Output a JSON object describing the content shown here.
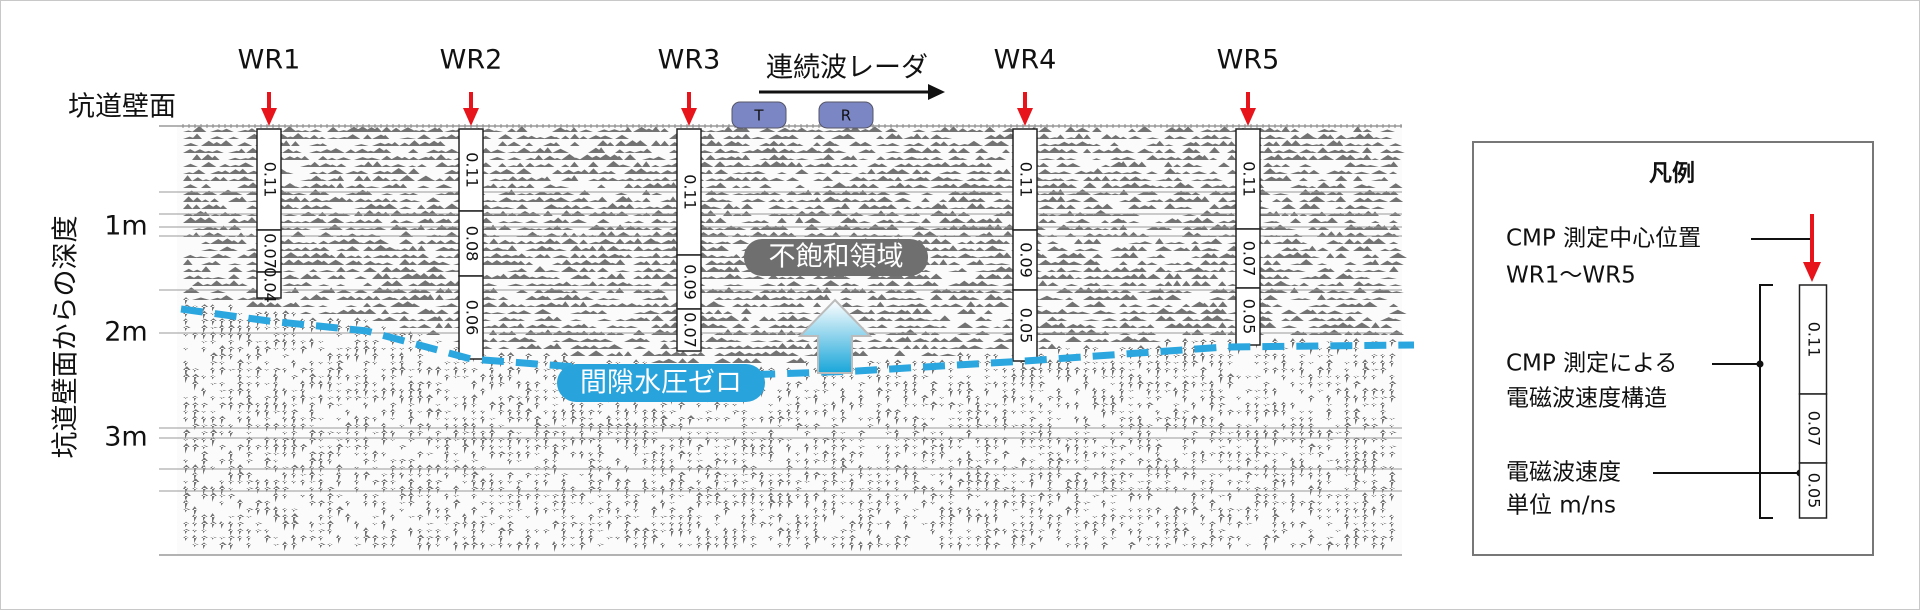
{
  "header": {
    "surface_label": "坑道壁面",
    "depth_axis_label": "坑道壁面からの深度",
    "depth_labels": [
      "1m",
      "2m",
      "3m"
    ],
    "radar_label": "連続波レーダ",
    "transmitter": "T",
    "receiver": "R"
  },
  "stations": [
    {
      "name": "WR1",
      "velocities": [
        0.11,
        0.07,
        0.04
      ]
    },
    {
      "name": "WR2",
      "velocities": [
        0.11,
        0.08,
        0.06
      ]
    },
    {
      "name": "WR3",
      "velocities": [
        0.11,
        0.09,
        0.07
      ]
    },
    {
      "name": "WR4",
      "velocities": [
        0.11,
        0.09,
        0.05
      ]
    },
    {
      "name": "WR5",
      "velocities": [
        0.11,
        0.07,
        0.05
      ]
    }
  ],
  "annotations": {
    "unsaturated_zone": "不飽和領域",
    "zero_pore_pressure": "間隙水圧ゼロ"
  },
  "legend": {
    "title": "凡例",
    "cmp_center": [
      "CMP 測定中心位置",
      "WR1～WR5"
    ],
    "velocity_structure": [
      "CMP 測定による",
      "電磁波速度構造"
    ],
    "velocity": [
      "電磁波速度",
      "単位 m/ns"
    ],
    "example_velocities": [
      0.11,
      0.07,
      0.05
    ]
  }
}
